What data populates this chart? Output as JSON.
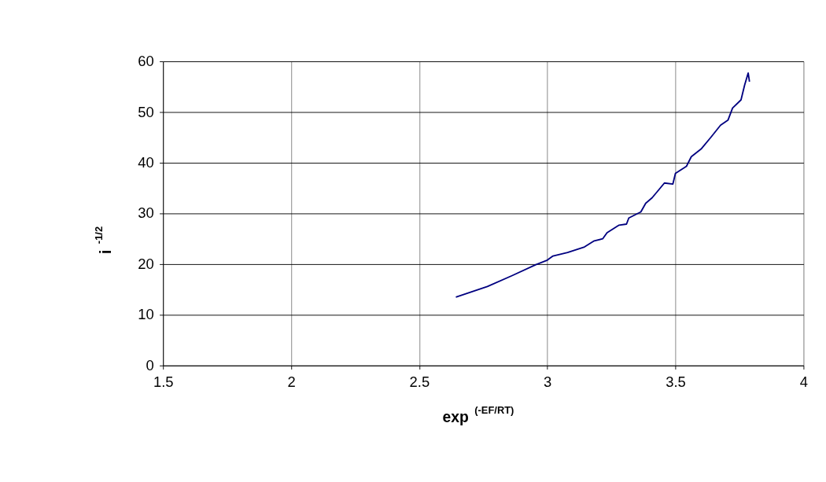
{
  "chart_data": {
    "type": "line",
    "xlabel": "exp$^{(-EF/RT)}$",
    "ylabel": "i$^{-1/2}$",
    "x": [
      2.643,
      2.766,
      2.861,
      2.955,
      3.0,
      3.022,
      3.079,
      3.145,
      3.183,
      3.216,
      3.233,
      3.28,
      3.309,
      3.318,
      3.365,
      3.384,
      3.409,
      3.429,
      3.457,
      3.49,
      3.5,
      3.543,
      3.562,
      3.6,
      3.638,
      3.676,
      3.705,
      3.723,
      3.756,
      3.77,
      3.784,
      3.789
    ],
    "series": [
      {
        "color": "#000080",
        "values": [
          13.5,
          15.6,
          17.7,
          19.9,
          20.8,
          21.6,
          22.3,
          23.4,
          24.6,
          25.0,
          26.2,
          27.7,
          27.9,
          29.1,
          30.3,
          32.0,
          33.1,
          34.3,
          36.0,
          35.8,
          37.9,
          39.3,
          41.2,
          42.7,
          45.0,
          47.4,
          48.4,
          50.8,
          52.4,
          55.3,
          57.7,
          56.0
        ]
      }
    ],
    "xlim": [
      1.5,
      4
    ],
    "xticks": [
      1.5,
      2,
      2.5,
      3,
      3.5,
      4
    ],
    "ylim": [
      0,
      60
    ],
    "yticks": [
      0,
      10,
      20,
      30,
      40,
      50,
      60
    ],
    "grid": true,
    "marker": "none",
    "line_style": "solid"
  }
}
